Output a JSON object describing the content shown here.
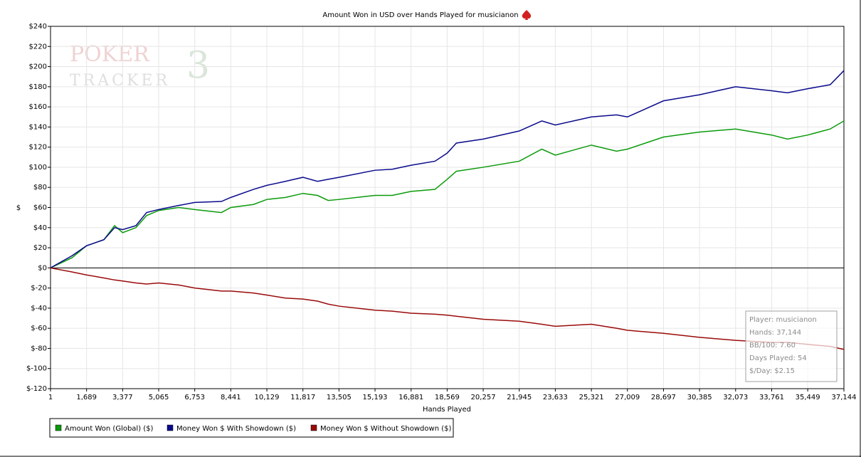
{
  "chart_data": {
    "type": "line",
    "title": "Amount Won in USD over Hands Played for musicianon",
    "watermark": [
      "POKER",
      "TRACKER",
      "3"
    ],
    "x_label": "Hands Played",
    "y_label": "$",
    "x": [
      1,
      1000,
      1689,
      2500,
      3000,
      3377,
      4000,
      4500,
      5065,
      6000,
      6753,
      8000,
      8441,
      9500,
      10129,
      11000,
      11817,
      12500,
      13000,
      13505,
      15193,
      16000,
      16881,
      18000,
      18569,
      19000,
      20257,
      21945,
      23000,
      23633,
      25321,
      26500,
      27009,
      28697,
      30385,
      32073,
      33761,
      34500,
      35449,
      36500,
      37144
    ],
    "series": [
      {
        "name": "Amount Won (Global) ($)",
        "color": "#0a9a0a",
        "values": [
          0,
          10,
          22,
          28,
          42,
          35,
          40,
          52,
          57,
          60,
          58,
          55,
          60,
          63,
          68,
          70,
          74,
          72,
          67,
          68,
          72,
          72,
          76,
          78,
          88,
          96,
          100,
          106,
          118,
          112,
          122,
          116,
          118,
          130,
          135,
          138,
          132,
          128,
          132,
          138,
          146
        ]
      },
      {
        "name": "Money Won $ With Showdown ($)",
        "color": "#0a0a8c",
        "values": [
          0,
          12,
          22,
          28,
          40,
          38,
          42,
          55,
          58,
          62,
          65,
          66,
          70,
          78,
          82,
          86,
          90,
          86,
          88,
          90,
          97,
          98,
          102,
          106,
          114,
          124,
          128,
          136,
          146,
          142,
          150,
          152,
          150,
          166,
          172,
          180,
          176,
          174,
          178,
          182,
          196
        ]
      },
      {
        "name": "Money Won $ Without Showdown ($)",
        "color": "#9a0a0a",
        "values": [
          0,
          -4,
          -7,
          -10,
          -12,
          -13,
          -15,
          -16,
          -15,
          -17,
          -20,
          -23,
          -23,
          -25,
          -27,
          -30,
          -31,
          -33,
          -36,
          -38,
          -42,
          -43,
          -45,
          -46,
          -47,
          -48,
          -51,
          -53,
          -56,
          -58,
          -56,
          -60,
          -62,
          -65,
          -69,
          -72,
          -74,
          -74,
          -76,
          -78,
          -81
        ]
      }
    ],
    "xlim": [
      1,
      37144
    ],
    "xticks": [
      1,
      {
        "value": 1689,
        "label": "1,689"
      },
      {
        "value": 3377,
        "label": "3,377"
      },
      {
        "value": 5065,
        "label": "5,065"
      },
      {
        "value": 6753,
        "label": "6,753"
      },
      {
        "value": 8441,
        "label": "8,441"
      },
      {
        "value": 10129,
        "label": "10,129"
      },
      {
        "value": 11817,
        "label": "11,817"
      },
      {
        "value": 13505,
        "label": "13,505"
      },
      {
        "value": 15193,
        "label": "15,193"
      },
      {
        "value": 16881,
        "label": "16,881"
      },
      {
        "value": 18569,
        "label": "18,569"
      },
      {
        "value": 20257,
        "label": "20,257"
      },
      {
        "value": 21945,
        "label": "21,945"
      },
      {
        "value": 23633,
        "label": "23,633"
      },
      {
        "value": 25321,
        "label": "25,321"
      },
      {
        "value": 27009,
        "label": "27,009"
      },
      {
        "value": 28697,
        "label": "28,697"
      },
      {
        "value": 30385,
        "label": "30,385"
      },
      {
        "value": 32073,
        "label": "32,073"
      },
      {
        "value": 33761,
        "label": "33,761"
      },
      {
        "value": 35449,
        "label": "35,449"
      },
      {
        "value": 37144,
        "label": "37,144"
      }
    ],
    "ylim": [
      -120,
      240
    ],
    "yticks": [
      {
        "value": -120,
        "label": "$-120"
      },
      {
        "value": -100,
        "label": "$-100"
      },
      {
        "value": -80,
        "label": "$-80"
      },
      {
        "value": -60,
        "label": "$-60"
      },
      {
        "value": -40,
        "label": "$-40"
      },
      {
        "value": -20,
        "label": "$-20"
      },
      {
        "value": 0,
        "label": "$0"
      },
      {
        "value": 20,
        "label": "$20"
      },
      {
        "value": 40,
        "label": "$40"
      },
      {
        "value": 60,
        "label": "$60"
      },
      {
        "value": 80,
        "label": "$80"
      },
      {
        "value": 100,
        "label": "$100"
      },
      {
        "value": 120,
        "label": "$120"
      },
      {
        "value": 140,
        "label": "$140"
      },
      {
        "value": 160,
        "label": "$160"
      },
      {
        "value": 180,
        "label": "$180"
      },
      {
        "value": 200,
        "label": "$200"
      },
      {
        "value": 220,
        "label": "$220"
      },
      {
        "value": 240,
        "label": "$240"
      }
    ],
    "grid": true,
    "annotations": [
      "Player: musicianon",
      "Hands: 37,144",
      "BB/100: 7.60",
      "Days Played: 54",
      "$/Day: $2.15"
    ]
  }
}
